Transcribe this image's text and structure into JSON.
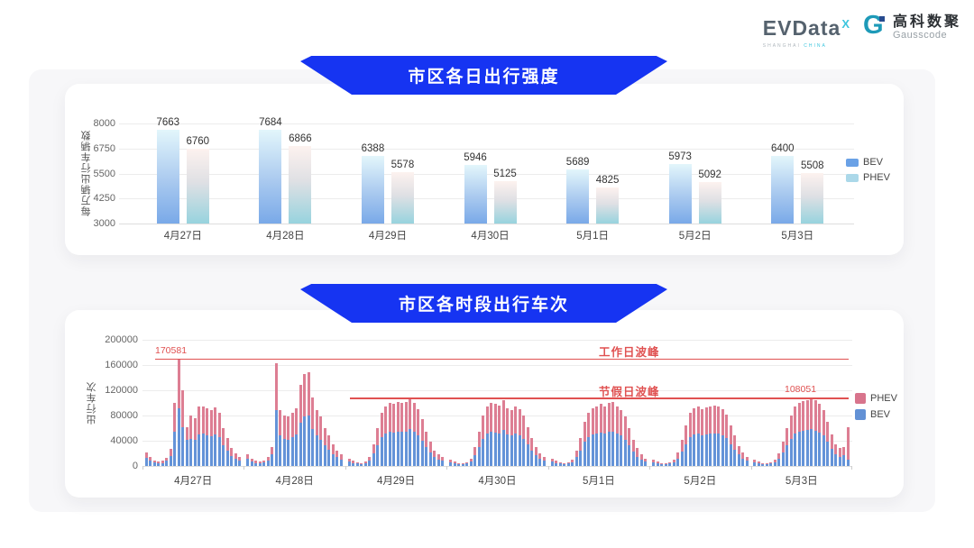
{
  "logo": {
    "evdata_text": "EVData",
    "evdata_sup": "X",
    "evdata_sub_left": "SHANGHAI",
    "evdata_sub_right": "CHINA",
    "gauss_mark": "G",
    "gauss_cn": "高科数聚",
    "gauss_en": "Gausscode"
  },
  "colors": {
    "banner_blue": "#1634f2",
    "bev_blue": "#6493d8",
    "phev_pink": "#dd7e93",
    "legend_bev_c1": "#6aa1e6",
    "legend_phev_c1": "#abd8e9",
    "annotation_red": "#e05151"
  },
  "chart_data": [
    {
      "type": "bar",
      "title": "市区各日出行强度",
      "ylabel": "每万辆出行车辆数",
      "categories": [
        "4月27日",
        "4月28日",
        "4月29日",
        "4月30日",
        "5月1日",
        "5月2日",
        "5月3日"
      ],
      "yticks": [
        8000,
        6750,
        5500,
        4250,
        3000
      ],
      "ylim": [
        3000,
        8000
      ],
      "legend": [
        "BEV",
        "PHEV"
      ],
      "grid": true,
      "legend_position": "right",
      "series": [
        {
          "name": "BEV",
          "values": [
            7663,
            7684,
            6388,
            5946,
            5689,
            5973,
            6400
          ]
        },
        {
          "name": "PHEV",
          "values": [
            6760,
            6866,
            5578,
            5125,
            4825,
            5092,
            5508
          ]
        }
      ]
    },
    {
      "type": "bar",
      "subtype": "stacked-hourly",
      "title": "市区各时段出行车次",
      "ylabel": "出行车次",
      "categories": [
        "4月27日",
        "4月28日",
        "4月29日",
        "4月30日",
        "5月1日",
        "5月2日",
        "5月3日"
      ],
      "yticks": [
        200000,
        160000,
        120000,
        80000,
        40000,
        0
      ],
      "ylim": [
        0,
        200000
      ],
      "legend": [
        "PHEV",
        "BEV"
      ],
      "grid": true,
      "legend_position": "right",
      "annotations": [
        {
          "label": "工作日波峰",
          "value": 170581,
          "value_label": "170581"
        },
        {
          "label": "节假日波峰",
          "value": 108051,
          "value_label": "108051"
        }
      ],
      "series": [
        {
          "name": "BEV",
          "days": [
            [
              13000,
              8500,
              5500,
              4200,
              5000,
              8000,
              16000,
              54000,
              91000,
              62000,
              42000,
              43000,
              41000,
              50000,
              51000,
              49000,
              47000,
              50000,
              46000,
              33000,
              25000,
              16000,
              12000,
              9000
            ],
            [
              11000,
              7000,
              4800,
              4200,
              5500,
              8500,
              18000,
              88000,
              48000,
              43000,
              42000,
              46000,
              50000,
              68000,
              78000,
              80000,
              58000,
              48000,
              42000,
              33000,
              26000,
              19000,
              14000,
              10000
            ],
            [
              7000,
              4800,
              3600,
              3000,
              4200,
              9000,
              20000,
              33000,
              46000,
              51000,
              54000,
              53000,
              55000,
              54000,
              54000,
              58000,
              54000,
              48000,
              40000,
              30000,
              21000,
              14000,
              10000,
              8000
            ],
            [
              6000,
              4200,
              3000,
              3000,
              3600,
              7000,
              17000,
              30000,
              43000,
              51000,
              54000,
              53000,
              52000,
              57000,
              50000,
              48000,
              51000,
              49000,
              43000,
              34000,
              25000,
              17000,
              11000,
              8000
            ],
            [
              7000,
              4800,
              3600,
              3000,
              3600,
              6000,
              14000,
              25000,
              38000,
              46000,
              50000,
              51000,
              53000,
              51000,
              54000,
              55000,
              51000,
              48000,
              42000,
              33000,
              23000,
              15000,
              10000,
              7000
            ],
            [
              6000,
              4200,
              3000,
              3000,
              3600,
              6000,
              12000,
              23000,
              35000,
              46000,
              50000,
              51000,
              49000,
              50000,
              51000,
              52000,
              51000,
              49000,
              44000,
              35000,
              26000,
              18000,
              12000,
              9000
            ],
            [
              6000,
              4200,
              3000,
              3000,
              3600,
              6000,
              11000,
              21000,
              33000,
              43000,
              51000,
              54000,
              56000,
              57000,
              59000,
              56000,
              53000,
              48000,
              38000,
              27000,
              19000,
              15000,
              17000,
              10000
            ]
          ]
        },
        {
          "name": "PHEV",
          "days": [
            [
              9000,
              5500,
              3500,
              2800,
              3000,
              5000,
              11000,
              46000,
              79581,
              58000,
              20000,
              37000,
              35000,
              44000,
              44000,
              42000,
              41000,
              43000,
              39000,
              27000,
              20000,
              12000,
              8000,
              6000
            ],
            [
              7000,
              5000,
              3200,
              2800,
              3500,
              5500,
              12000,
              75000,
              40000,
              37000,
              36000,
              39000,
              42000,
              60000,
              68000,
              69000,
              50000,
              41000,
              36000,
              27000,
              22000,
              16000,
              11000,
              8000
            ],
            [
              5000,
              3200,
              2400,
              2000,
              2800,
              6000,
              15000,
              27000,
              39000,
              44000,
              46000,
              46000,
              47000,
              46000,
              47000,
              50000,
              46000,
              42000,
              35000,
              25000,
              17000,
              11000,
              8000,
              6000
            ],
            [
              4000,
              2800,
              2000,
              2000,
              2400,
              5000,
              13000,
              25000,
              37000,
              44000,
              46000,
              45000,
              44000,
              48000,
              42000,
              40000,
              44000,
              41000,
              37000,
              28000,
              20000,
              13000,
              9000,
              6000
            ],
            [
              5000,
              3200,
              2400,
              2000,
              2400,
              4000,
              11000,
              20000,
              32000,
              39000,
              42000,
              44000,
              45000,
              44000,
              46000,
              47000,
              44000,
              40000,
              36000,
              27000,
              19000,
              13000,
              8000,
              5000
            ],
            [
              4000,
              2800,
              2000,
              2000,
              2400,
              4000,
              10000,
              19000,
              30000,
              39000,
              42000,
              44000,
              41000,
              43000,
              44000,
              44000,
              43000,
              41000,
              38000,
              30000,
              22000,
              14000,
              10000,
              6000
            ],
            [
              4000,
              2800,
              2000,
              2000,
              2400,
              4000,
              9000,
              17000,
              27000,
              37000,
              44000,
              46000,
              47000,
              48000,
              49051,
              48000,
              45000,
              40000,
              32000,
              23000,
              16000,
              13000,
              13000,
              52000
            ]
          ]
        }
      ]
    }
  ]
}
